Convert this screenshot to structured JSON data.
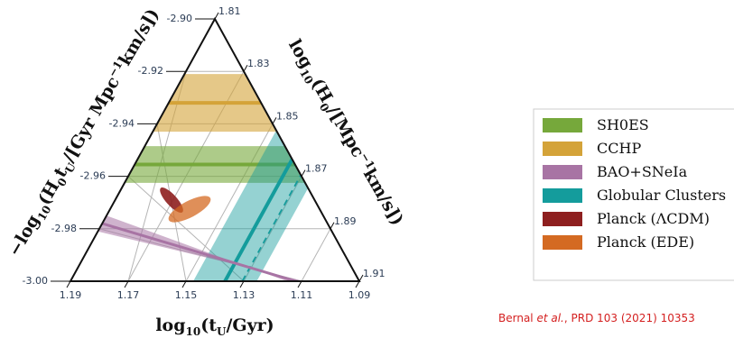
{
  "chart_data": {
    "type": "ternary",
    "axes": {
      "bottom": {
        "label_main": "log",
        "label_sub": "10",
        "label_rest": "(t",
        "label_rest_sub": "U",
        "label_end": "/Gyr)",
        "ticks": [
          "1.19",
          "1.17",
          "1.15",
          "1.13",
          "1.11",
          "1.09"
        ]
      },
      "left": {
        "label_main": "−log",
        "label_sub": "10",
        "label_rest": "(H",
        "label_rest_sub": "0",
        "label_mid": "t",
        "label_mid_sub": "U",
        "label_end": "/[Gyr Mpc",
        "label_sup": "−1",
        "label_end2": "km/s])",
        "ticks": [
          "-3.00",
          "-2.98",
          "-2.96",
          "-2.94",
          "-2.92",
          "-2.90"
        ]
      },
      "right": {
        "label_main": "log",
        "label_sub": "10",
        "label_rest": "(H",
        "label_rest_sub": "0",
        "label_end": "/[Mpc",
        "label_sup": "−1",
        "label_end2": "km/s])",
        "ticks": [
          "1.81",
          "1.83",
          "1.85",
          "1.87",
          "1.89",
          "1.91"
        ]
      }
    },
    "series": [
      {
        "name": "SH0ES",
        "color": "#76a83b",
        "log10_H0": 1.8655,
        "half_width": 0.007
      },
      {
        "name": "CCHP",
        "color": "#d4a339",
        "log10_H0": 1.842,
        "half_width": 0.011
      },
      {
        "name": "BAO+SNeIa",
        "color": "#a874a4",
        "neg_log10_H0tU": -2.978,
        "half_width": 0.003
      },
      {
        "name": "Globular Clusters",
        "color": "#149c9c",
        "log10_tU": 1.1365,
        "half_width": 0.011
      },
      {
        "name": "Planck (ΛCDM)",
        "color": "#8e1f1f"
      },
      {
        "name": "Planck (EDE)",
        "color": "#d46a22"
      }
    ]
  },
  "legend": [
    {
      "label": "SH0ES",
      "color": "#76a83b"
    },
    {
      "label": "CCHP",
      "color": "#d4a339"
    },
    {
      "label": "BAO+SNeIa",
      "color": "#a874a4"
    },
    {
      "label": "Globular Clusters",
      "color": "#149c9c"
    },
    {
      "label": "Planck (ΛCDM)",
      "color": "#8e1f1f"
    },
    {
      "label": "Planck (EDE)",
      "color": "#d46a22"
    }
  ],
  "citation": {
    "authors": "Bernal",
    "etal": "et al.",
    "rest": ", PRD 103 (2021) 10353"
  }
}
